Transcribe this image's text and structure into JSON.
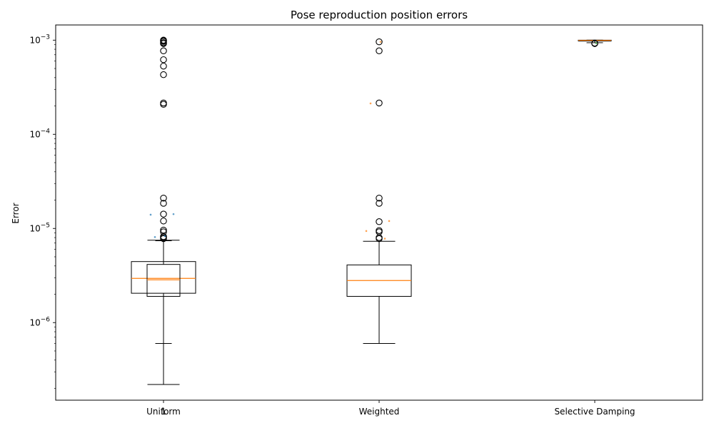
{
  "chart_data": {
    "type": "box",
    "title": "Pose reproduction position errors",
    "xlabel": "",
    "ylabel": "Error",
    "yscale": "log",
    "ylim": [
      1.5e-07,
      0.00145
    ],
    "y_tick_labels": [
      {
        "mantissa": "10",
        "exp": "−6",
        "value": 1e-06
      },
      {
        "mantissa": "10",
        "exp": "−5",
        "value": 1e-05
      },
      {
        "mantissa": "10",
        "exp": "−4",
        "value": 0.0001
      },
      {
        "mantissa": "10",
        "exp": "−3",
        "value": 0.001
      }
    ],
    "categories": [
      "Uniform",
      "Weighted",
      "Selective Damping"
    ],
    "overlay_label": "1",
    "boxes": [
      {
        "category": "Uniform",
        "whislo": 2.2e-07,
        "q1": 2.05e-06,
        "median": 2.95e-06,
        "q3": 4.45e-06,
        "whishi": 7.5e-06
      },
      {
        "category": "Uniform",
        "whislo": 6e-07,
        "q1": 1.9e-06,
        "median": 2.85e-06,
        "q3": 4.15e-06,
        "whishi": 7.4e-06
      },
      {
        "category": "Weighted",
        "whislo": 6e-07,
        "q1": 1.9e-06,
        "median": 2.8e-06,
        "q3": 4.1e-06,
        "whishi": 7.3e-06
      },
      {
        "category": "Selective Damping",
        "whislo": 0.00094,
        "q1": 0.00098,
        "median": 0.000995,
        "q3": 0.001,
        "whishi": 0.001
      }
    ],
    "fliers": [
      {
        "category": "Uniform",
        "values": [
          0.001,
          0.00099,
          0.00097,
          0.00094,
          0.00092,
          0.00077,
          0.00062,
          0.00053,
          0.00043,
          0.000215,
          0.000208,
          2.1e-05,
          1.85e-05,
          1.42e-05,
          1.2e-05,
          9.6e-06,
          9.2e-06,
          8.2e-06,
          8e-06,
          7.8e-06
        ]
      },
      {
        "category": "Weighted",
        "values": [
          0.00096,
          0.00077,
          0.000215,
          2.1e-05,
          1.85e-05,
          1.18e-05,
          9.5e-06,
          9.2e-06,
          8e-06,
          7.8e-06
        ]
      },
      {
        "category": "Selective Damping",
        "values": [
          0.00093,
          0.00092
        ]
      }
    ],
    "jitter_points": [
      {
        "category": "Uniform",
        "color": "#1f77b4",
        "values": [
          8.3e-06,
          8.1e-06,
          1.42e-05,
          1.4e-05
        ]
      },
      {
        "category": "Weighted",
        "color": "#ff7f0e",
        "values": [
          0.00096,
          0.000213,
          1.2e-05,
          9.4e-06,
          7.8e-06
        ]
      },
      {
        "category": "Selective Damping",
        "color": "#2ca02c",
        "values": [
          0.00093
        ]
      }
    ],
    "colors": {
      "box": "#000000",
      "median": "#ff7f0e",
      "flier": "#000000"
    }
  }
}
